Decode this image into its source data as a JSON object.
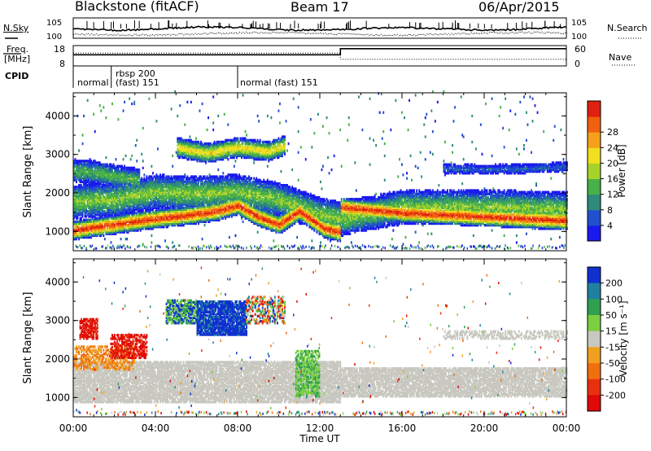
{
  "header": {
    "station": "Blackstone (fitACF)",
    "beam": "Beam 17",
    "date": "06/Apr/2015"
  },
  "side_labels": {
    "nsky": "N.Sky",
    "nsearch": "N.Search",
    "freq_line1": "Freq.",
    "freq_line2": "[MHz]",
    "nave": "Nave",
    "cpid": "CPID"
  },
  "colors": {
    "noise_line": "#000000",
    "no_data": "#ffffff",
    "ground_scatter": "#c8c8c0"
  },
  "chart_data": [
    {
      "type": "line",
      "name": "noise",
      "y_ticks_left": [
        "10^5",
        "10^0"
      ],
      "y_ticks_right": [
        "10^5",
        "10^0"
      ],
      "series": [
        {
          "name": "N.Sky",
          "style": "solid"
        },
        {
          "name": "N.Search",
          "style": "dotted"
        }
      ]
    },
    {
      "type": "line",
      "name": "frequency_nave",
      "y_ticks_left": [
        "18",
        "8"
      ],
      "y_ticks_right": [
        "60",
        "0"
      ],
      "x": [
        0,
        13.0,
        13.0,
        24
      ],
      "series": [
        {
          "name": "Freq.",
          "style": "solid",
          "values": [
            13.5,
            13.5,
            16.5,
            16.5
          ]
        },
        {
          "name": "Nave",
          "style": "dotted",
          "values": [
            38,
            38,
            20,
            20
          ]
        }
      ]
    },
    {
      "type": "table",
      "name": "cpid",
      "segments": [
        {
          "start": 0.0,
          "end": 1.85,
          "label": "normal",
          "label2": ""
        },
        {
          "start": 1.85,
          "end": 8.0,
          "label": "rbsp 200",
          "label2": "(fast) 151"
        },
        {
          "start": 8.0,
          "end": 24.0,
          "label": "normal (fast)  151",
          "label2": ""
        }
      ]
    },
    {
      "type": "heatmap",
      "name": "power",
      "ylabel": "Slant Range [km]",
      "yticks": [
        "1000",
        "2000",
        "3000",
        "4000"
      ],
      "ylim": [
        500,
        4600
      ],
      "xlim": [
        0,
        24
      ],
      "colorbar": {
        "label": "Power [dB]",
        "ticks": [
          "4",
          "8",
          "12",
          "16",
          "20",
          "24",
          "28"
        ],
        "range": [
          0,
          30
        ],
        "colors": [
          "#1a1aee",
          "#2050cc",
          "#2e8a7a",
          "#48b048",
          "#a6d22c",
          "#f0e020",
          "#f5a01a",
          "#f06010",
          "#e02010"
        ]
      },
      "bands": [
        {
          "x": [
            0,
            2,
            4,
            5.5,
            7,
            8,
            9,
            10,
            11,
            12.2,
            13.0,
            13.0,
            16,
            20,
            24
          ],
          "center": [
            1000,
            1150,
            1300,
            1380,
            1500,
            1650,
            1350,
            1150,
            1500,
            1050,
            950,
            1600,
            1450,
            1350,
            1250
          ],
          "width": 250,
          "peak": 28
        },
        {
          "x": [
            0,
            2,
            4,
            6,
            8,
            10,
            12,
            13,
            16,
            20,
            24
          ],
          "center": [
            1750,
            1800,
            2000,
            1950,
            2000,
            1800,
            1400,
            1300,
            1600,
            1600,
            1550
          ],
          "width": 450,
          "peak": 14
        },
        {
          "x": [
            5.0,
            6.5,
            8.0,
            9.5,
            10.3
          ],
          "center": [
            3150,
            3000,
            3150,
            3050,
            3200
          ],
          "width": 260,
          "peak": 19
        },
        {
          "x": [
            0.0,
            1.0,
            2.0,
            3.2
          ],
          "center": [
            2550,
            2500,
            2400,
            2300
          ],
          "width": 300,
          "peak": 12
        },
        {
          "x": [
            18,
            20,
            22,
            24
          ],
          "center": [
            2600,
            2580,
            2600,
            2650
          ],
          "width": 120,
          "peak": 6
        }
      ]
    },
    {
      "type": "heatmap",
      "name": "velocity",
      "ylabel": "Slant Range [km]",
      "yticks": [
        "1000",
        "2000",
        "3000",
        "4000"
      ],
      "ylim": [
        500,
        4600
      ],
      "xlim": [
        0,
        24
      ],
      "xticks": [
        "00:00",
        "04:00",
        "08:00",
        "12:00",
        "16:00",
        "20:00",
        "00:00"
      ],
      "xlabel": "Time UT",
      "colorbar": {
        "label": "Velocity [m s^-1]",
        "ticks": [
          "200",
          "100",
          "50",
          "15",
          "-15",
          "-50",
          "-100",
          "-200"
        ],
        "colors": [
          "#1030d0",
          "#2080a0",
          "#30a050",
          "#7ad040",
          "#c8c8c0",
          "#f0a020",
          "#f07010",
          "#e83010",
          "#e00808"
        ]
      },
      "regions": [
        {
          "x0": 0.0,
          "x1": 13.0,
          "y0": 850,
          "y1": 1900,
          "class": "ground",
          "density": 0.8
        },
        {
          "x0": 13.0,
          "x1": 24.0,
          "y0": 1000,
          "y1": 1750,
          "class": "ground",
          "density": 0.8
        },
        {
          "x0": 0.0,
          "x1": 3.0,
          "y0": 1700,
          "y1": 2300,
          "class": "orange",
          "density": 0.5
        },
        {
          "x0": 0.3,
          "x1": 1.2,
          "y0": 2500,
          "y1": 3000,
          "class": "red",
          "density": 0.7
        },
        {
          "x0": 1.8,
          "x1": 3.6,
          "y0": 2000,
          "y1": 2600,
          "class": "red",
          "density": 0.6
        },
        {
          "x0": 4.5,
          "x1": 6.0,
          "y0": 2900,
          "y1": 3500,
          "class": "green",
          "density": 0.7
        },
        {
          "x0": 6.0,
          "x1": 8.4,
          "y0": 2600,
          "y1": 3500,
          "class": "blue",
          "density": 0.85
        },
        {
          "x0": 8.4,
          "x1": 10.3,
          "y0": 2900,
          "y1": 3600,
          "class": "mixed",
          "density": 0.5
        },
        {
          "x0": 10.8,
          "x1": 12.0,
          "y0": 1000,
          "y1": 2200,
          "class": "lightgreen",
          "density": 0.6
        },
        {
          "x0": 18.0,
          "x1": 24.0,
          "y0": 2500,
          "y1": 2700,
          "class": "ground",
          "density": 0.5
        }
      ]
    }
  ]
}
